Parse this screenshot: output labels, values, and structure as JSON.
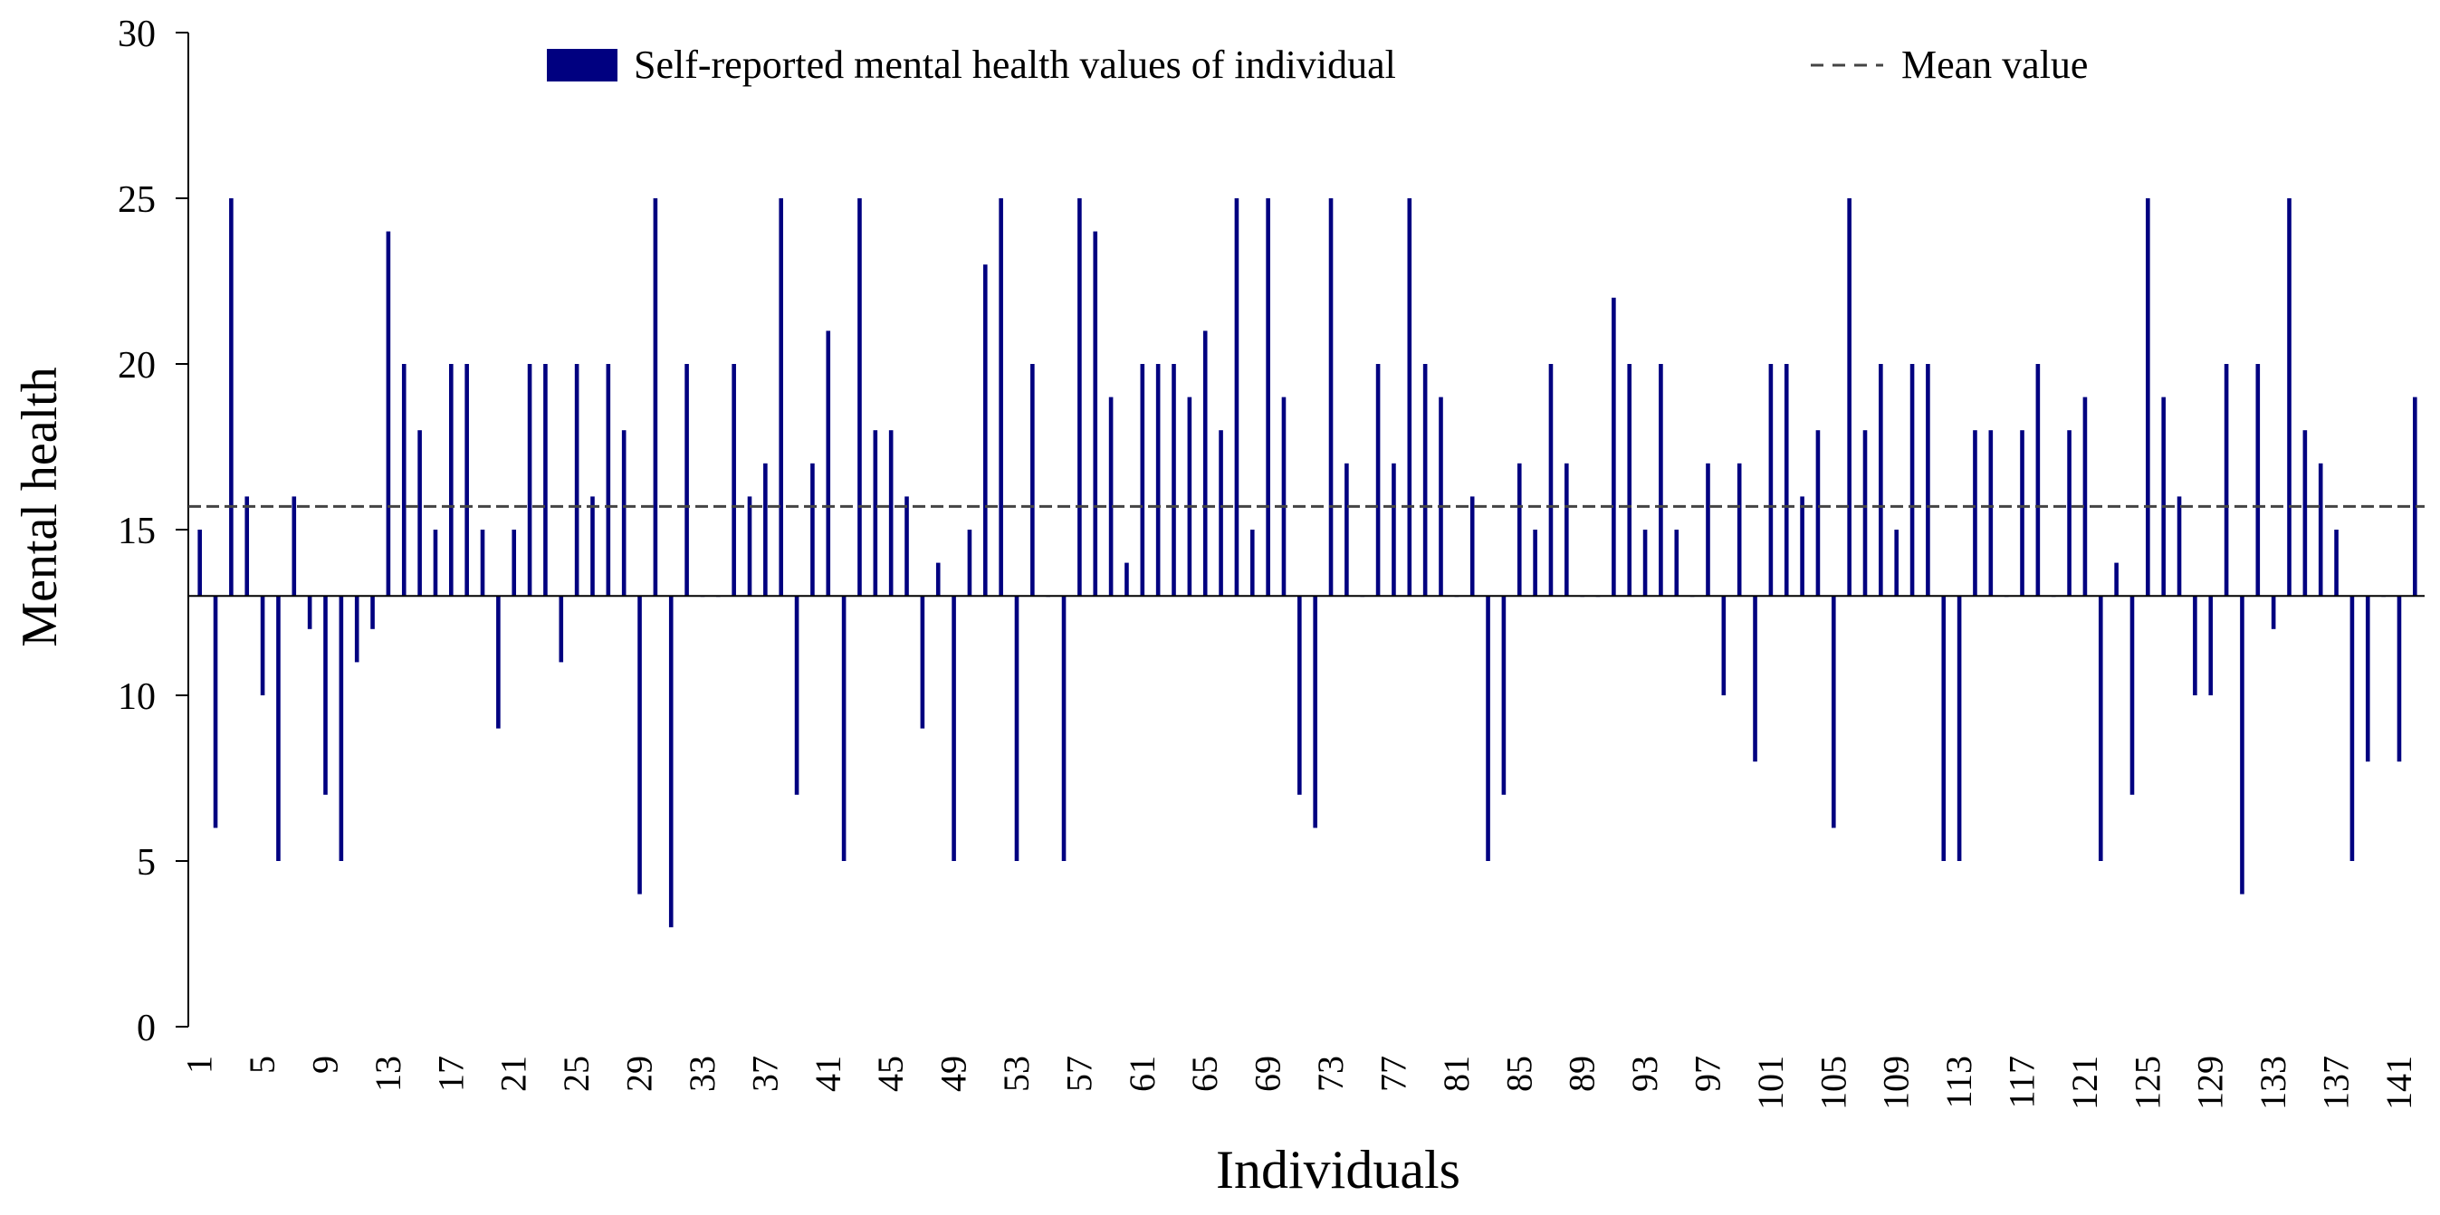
{
  "chart_data": {
    "type": "bar",
    "title": "",
    "xlabel": "Individuals",
    "ylabel": "Mental health",
    "ylim": [
      0,
      30
    ],
    "yticks": [
      0,
      5,
      10,
      15,
      20,
      25,
      30
    ],
    "bar_base": 13,
    "mean_value": 15.7,
    "x_tick_labels": [
      "1",
      "5",
      "9",
      "13",
      "17",
      "21",
      "25",
      "29",
      "33",
      "37",
      "41",
      "45",
      "49",
      "53",
      "57",
      "61",
      "65",
      "69",
      "73",
      "77",
      "81",
      "85",
      "89",
      "93",
      "97",
      "101",
      "105",
      "109",
      "113",
      "117",
      "121",
      "125",
      "129",
      "133",
      "137",
      "141"
    ],
    "x_tick_step": 4,
    "legend": {
      "position": "top",
      "bars_label": "Self-reported mental health values of individual",
      "mean_label": "Mean value"
    },
    "colors": {
      "bar": "#000080",
      "mean": "#444444",
      "axis": "#000000"
    },
    "categories": [
      1,
      2,
      3,
      4,
      5,
      6,
      7,
      8,
      9,
      10,
      11,
      12,
      13,
      14,
      15,
      16,
      17,
      18,
      19,
      20,
      21,
      22,
      23,
      24,
      25,
      26,
      27,
      28,
      29,
      30,
      31,
      32,
      33,
      34,
      35,
      36,
      37,
      38,
      39,
      40,
      41,
      42,
      43,
      44,
      45,
      46,
      47,
      48,
      49,
      50,
      51,
      52,
      53,
      54,
      55,
      56,
      57,
      58,
      59,
      60,
      61,
      62,
      63,
      64,
      65,
      66,
      67,
      68,
      69,
      70,
      71,
      72,
      73,
      74,
      75,
      76,
      77,
      78,
      79,
      80,
      81,
      82,
      83,
      84,
      85,
      86,
      87,
      88,
      89,
      90,
      91,
      92,
      93,
      94,
      95,
      96,
      97,
      98,
      99,
      100,
      101,
      102,
      103,
      104,
      105,
      106,
      107,
      108,
      109,
      110,
      111,
      112,
      113,
      114,
      115,
      116,
      117,
      118,
      119,
      120,
      121,
      122,
      123,
      124,
      125,
      126,
      127,
      128,
      129,
      130,
      131,
      132,
      133,
      134,
      135,
      136,
      137,
      138,
      139,
      140,
      141,
      142
    ],
    "values": [
      15,
      6,
      25,
      16,
      10,
      5,
      16,
      12,
      7,
      5,
      11,
      12,
      24,
      20,
      18,
      15,
      20,
      20,
      15,
      9,
      15,
      20,
      20,
      11,
      20,
      16,
      20,
      18,
      4,
      25,
      3,
      20,
      13,
      13,
      20,
      16,
      17,
      25,
      7,
      17,
      21,
      5,
      25,
      18,
      18,
      16,
      9,
      14,
      5,
      15,
      23,
      25,
      5,
      20,
      13,
      5,
      25,
      24,
      19,
      14,
      20,
      20,
      20,
      19,
      21,
      18,
      25,
      15,
      25,
      19,
      7,
      6,
      25,
      17,
      13,
      20,
      17,
      25,
      20,
      19,
      13,
      16,
      5,
      7,
      17,
      15,
      20,
      17,
      13,
      13,
      22,
      20,
      15,
      20,
      15,
      13,
      17,
      10,
      17,
      8,
      20,
      20,
      16,
      18,
      6,
      25,
      18,
      20,
      15,
      20,
      20,
      5,
      5,
      18,
      18,
      13,
      18,
      20,
      13,
      18,
      19,
      5,
      14,
      7,
      25,
      19,
      16,
      10,
      10,
      20,
      4,
      20,
      12,
      25,
      18,
      17,
      15,
      5,
      8,
      13,
      8,
      19
    ]
  }
}
